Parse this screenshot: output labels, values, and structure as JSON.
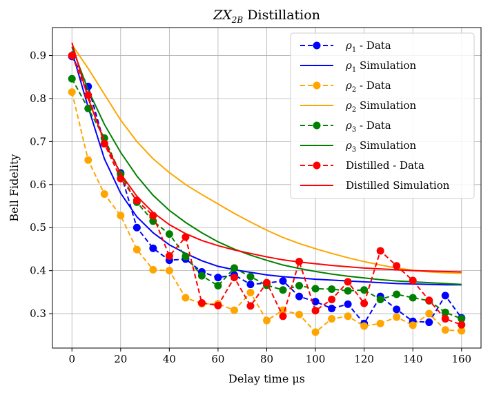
{
  "chart_data": {
    "type": "line",
    "title": "ZX₂B Distillation",
    "title_parts": {
      "main": "ZX",
      "sub": "2B",
      "rest": " Distillation"
    },
    "xlabel": "Delay time μs",
    "ylabel": "Bell Fidelity",
    "xlim": [
      -8,
      168
    ],
    "ylim": [
      0.22,
      0.965
    ],
    "xticks": [
      0,
      20,
      40,
      60,
      80,
      100,
      120,
      140,
      160
    ],
    "yticks": [
      0.3,
      0.4,
      0.5,
      0.6,
      0.7,
      0.8,
      0.9
    ],
    "xtick_labels": [
      "0",
      "20",
      "40",
      "60",
      "80",
      "100",
      "120",
      "140",
      "160"
    ],
    "ytick_labels": [
      "0.3",
      "0.4",
      "0.5",
      "0.6",
      "0.7",
      "0.8",
      "0.9"
    ],
    "grid": true,
    "legend_position": "top-right",
    "x": [
      0,
      6.67,
      13.33,
      20,
      26.67,
      33.33,
      40,
      46.67,
      53.33,
      60,
      66.67,
      73.33,
      80,
      86.67,
      93.33,
      100,
      106.67,
      113.33,
      120,
      126.67,
      133.33,
      140,
      146.67,
      153.33,
      160
    ],
    "series": [
      {
        "name": "ρ₁ - Data",
        "legend_main": "ρ",
        "legend_sub": "1",
        "legend_rest": " - Data",
        "color": "#0000ff",
        "style": "dashed-marker",
        "values": [
          0.898,
          0.828,
          0.695,
          0.627,
          0.5,
          0.452,
          0.424,
          0.427,
          0.397,
          0.384,
          0.39,
          0.368,
          0.371,
          0.376,
          0.34,
          0.328,
          0.312,
          0.322,
          0.277,
          0.34,
          0.31,
          0.282,
          0.28,
          0.342,
          0.29
        ]
      },
      {
        "name": "ρ₁ Simulation",
        "legend_main": "ρ",
        "legend_sub": "1",
        "legend_rest": " Simulation",
        "color": "#0000ff",
        "style": "solid",
        "values": [
          0.91,
          0.78,
          0.66,
          0.58,
          0.525,
          0.488,
          0.46,
          0.44,
          0.423,
          0.41,
          0.402,
          0.396,
          0.39,
          0.386,
          0.383,
          0.38,
          0.378,
          0.376,
          0.374,
          0.372,
          0.37,
          0.369,
          0.368,
          0.367,
          0.367
        ]
      },
      {
        "name": "ρ₂ - Data",
        "legend_main": "ρ",
        "legend_sub": "2",
        "legend_rest": " - Data",
        "color": "#ffa500",
        "style": "dashed-marker",
        "values": [
          0.815,
          0.657,
          0.578,
          0.528,
          0.449,
          0.402,
          0.4,
          0.337,
          0.323,
          0.323,
          0.308,
          0.349,
          0.284,
          0.308,
          0.298,
          0.257,
          0.288,
          0.294,
          0.271,
          0.277,
          0.292,
          0.273,
          0.3,
          0.262,
          0.26
        ]
      },
      {
        "name": "ρ₂ Simulation",
        "legend_main": "ρ",
        "legend_sub": "2",
        "legend_rest": " Simulation",
        "color": "#ffa500",
        "style": "solid",
        "values": [
          0.925,
          0.87,
          0.81,
          0.75,
          0.7,
          0.66,
          0.628,
          0.6,
          0.577,
          0.555,
          0.533,
          0.513,
          0.494,
          0.477,
          0.463,
          0.451,
          0.44,
          0.43,
          0.421,
          0.413,
          0.406,
          0.401,
          0.397,
          0.395,
          0.394
        ]
      },
      {
        "name": "ρ₃ - Data",
        "legend_main": "ρ",
        "legend_sub": "3",
        "legend_rest": " - Data",
        "color": "#008000",
        "style": "dashed-marker",
        "values": [
          0.846,
          0.777,
          0.708,
          0.624,
          0.559,
          0.515,
          0.485,
          0.433,
          0.388,
          0.365,
          0.406,
          0.386,
          0.366,
          0.355,
          0.365,
          0.358,
          0.357,
          0.353,
          0.355,
          0.333,
          0.345,
          0.337,
          0.33,
          0.303,
          0.288
        ]
      },
      {
        "name": "ρ₃ Simulation",
        "legend_main": "ρ",
        "legend_sub": "3",
        "legend_rest": " Simulation",
        "color": "#008000",
        "style": "solid",
        "values": [
          0.92,
          0.82,
          0.74,
          0.675,
          0.62,
          0.575,
          0.54,
          0.512,
          0.488,
          0.467,
          0.45,
          0.436,
          0.424,
          0.413,
          0.405,
          0.398,
          0.392,
          0.387,
          0.383,
          0.379,
          0.376,
          0.374,
          0.372,
          0.37,
          0.368
        ]
      },
      {
        "name": "Distilled - Data",
        "legend_main": "Distilled",
        "legend_sub": "",
        "legend_rest": " - Data",
        "color": "#ff0000",
        "style": "dashed-marker",
        "values": [
          0.9,
          0.808,
          0.695,
          0.614,
          0.563,
          0.528,
          0.434,
          0.478,
          0.325,
          0.319,
          0.384,
          0.318,
          0.372,
          0.294,
          0.421,
          0.307,
          0.333,
          0.374,
          0.324,
          0.446,
          0.411,
          0.377,
          0.331,
          0.288,
          0.274
        ]
      },
      {
        "name": "Distilled Simulation",
        "legend_main": "Distilled",
        "legend_sub": "",
        "legend_rest": " Simulation",
        "color": "#ff0000",
        "style": "solid",
        "values": [
          0.93,
          0.8,
          0.7,
          0.625,
          0.573,
          0.535,
          0.507,
          0.486,
          0.47,
          0.458,
          0.448,
          0.44,
          0.432,
          0.425,
          0.42,
          0.416,
          0.412,
          0.409,
          0.406,
          0.404,
          0.402,
          0.4,
          0.399,
          0.398,
          0.397
        ]
      }
    ]
  }
}
